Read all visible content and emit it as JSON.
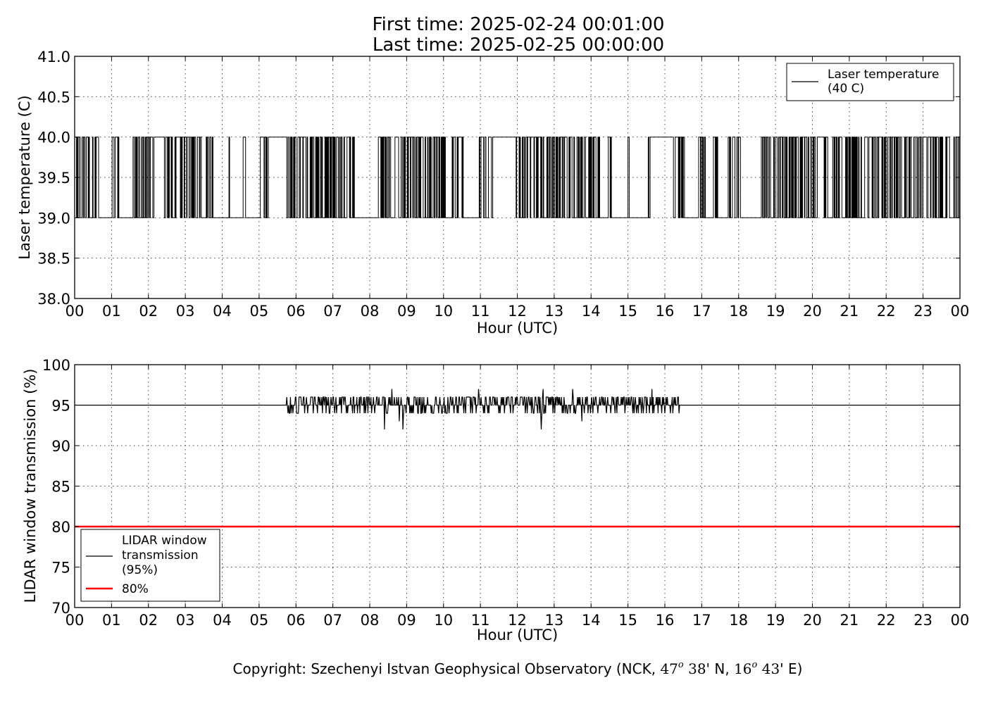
{
  "chart_data": [
    {
      "type": "line",
      "title": "First time: 2025-02-24 00:01:00",
      "subtitle": "Last time: 2025-02-25 00:00:00",
      "xlabel": "Hour (UTC)",
      "ylabel": "Laser temperature (C)",
      "xlim": [
        0,
        24
      ],
      "ylim": [
        38.0,
        41.0
      ],
      "grid": true,
      "legend_position": "top-right",
      "x_tick_labels": [
        "00",
        "01",
        "02",
        "03",
        "04",
        "05",
        "06",
        "07",
        "08",
        "09",
        "10",
        "11",
        "12",
        "13",
        "14",
        "15",
        "16",
        "17",
        "18",
        "19",
        "20",
        "21",
        "22",
        "23",
        "00"
      ],
      "y_tick_labels": [
        "38.0",
        "38.5",
        "39.0",
        "39.5",
        "40.0",
        "40.5",
        "41.0"
      ],
      "series": [
        {
          "name": "Laser temperature\n(40 C)",
          "color": "#000000",
          "pattern": "flips between discrete levels 39.0 and 40.0",
          "levels": [
            39.0,
            40.0
          ],
          "flat_39_intervals_hours": [
            [
              0.65,
              1.0
            ],
            [
              1.2,
              1.55
            ],
            [
              3.75,
              4.15
            ],
            [
              4.2,
              4.55
            ],
            [
              4.65,
              4.95
            ],
            [
              7.6,
              8.2
            ],
            [
              10.05,
              10.2
            ],
            [
              10.55,
              10.95
            ],
            [
              14.25,
              14.45
            ],
            [
              14.55,
              14.95
            ],
            [
              15.05,
              15.5
            ],
            [
              16.55,
              16.9
            ],
            [
              17.1,
              17.3
            ],
            [
              17.45,
              17.7
            ],
            [
              18.05,
              18.6
            ]
          ],
          "flat_40_intervals_hours": [
            [
              2.15,
              2.4
            ],
            [
              5.25,
              5.7
            ],
            [
              11.35,
              11.95
            ],
            [
              15.6,
              16.2
            ]
          ]
        }
      ]
    },
    {
      "type": "line",
      "xlabel": "Hour (UTC)",
      "ylabel": "LIDAR window transmission (%)",
      "xlim": [
        0,
        24
      ],
      "ylim": [
        70,
        100
      ],
      "grid": true,
      "legend_position": "lower-left",
      "x_tick_labels": [
        "00",
        "01",
        "02",
        "03",
        "04",
        "05",
        "06",
        "07",
        "08",
        "09",
        "10",
        "11",
        "12",
        "13",
        "14",
        "15",
        "16",
        "17",
        "18",
        "19",
        "20",
        "21",
        "22",
        "23",
        "00"
      ],
      "y_tick_labels": [
        "70",
        "75",
        "80",
        "85",
        "90",
        "95",
        "100"
      ],
      "series": [
        {
          "name": "LIDAR window\ntransmission\n(95%)",
          "color": "#000000",
          "baseline": 95,
          "active_interval_hours": [
            5.65,
            16.4
          ],
          "range_in_active_interval": [
            92,
            97
          ],
          "spikes": [
            {
              "x": 8.4,
              "y": 92
            },
            {
              "x": 8.9,
              "y": 92
            },
            {
              "x": 12.65,
              "y": 92
            },
            {
              "x": 8.6,
              "y": 97
            },
            {
              "x": 10.95,
              "y": 97
            },
            {
              "x": 12.7,
              "y": 97
            },
            {
              "x": 13.5,
              "y": 97
            },
            {
              "x": 15.65,
              "y": 97
            },
            {
              "x": 13.75,
              "y": 93
            },
            {
              "x": 8.8,
              "y": 93
            }
          ]
        },
        {
          "name": "80%",
          "color": "#ff0000",
          "constant": 80
        }
      ]
    }
  ],
  "footer": {
    "copyright": "Copyright: Szechenyi Istvan Geophysical Observatory (NCK, 47° 38' N, 16° 43' E)",
    "copyright_prefix": "Copyright: Szechenyi Istvan Geophysical Observatory (NCK, ",
    "lat_deg": "47",
    "lat_min": "38",
    "lat_hem": "' N, ",
    "lon_deg": "16",
    "lon_min": "43",
    "lon_hem": "' E)",
    "degree_mark": "o"
  }
}
